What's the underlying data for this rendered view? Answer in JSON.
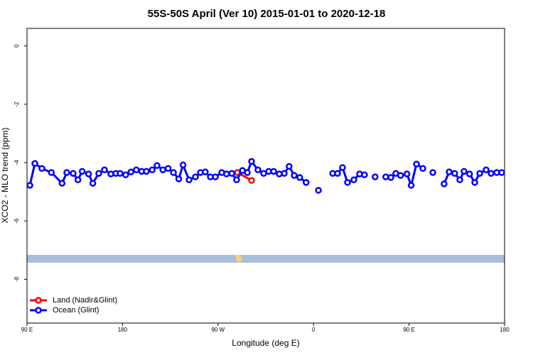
{
  "chart_data": {
    "type": "line",
    "title": "55S-50S April (Ver 10)   2015-01-01 to 2020-12-18",
    "x_label": "Longitude (deg E)",
    "y_label": "XCO2 - MLO trend (ppm)",
    "xlim": [
      90,
      540
    ],
    "ylim": [
      -9.5,
      0.6
    ],
    "xticks": [
      {
        "value": 90,
        "label": "90 E"
      },
      180,
      {
        "value": 270,
        "label": "90 W"
      },
      {
        "value": 360,
        "label": "0"
      },
      {
        "value": 450,
        "label": "90 E"
      },
      {
        "value": 540,
        "label": "180"
      }
    ],
    "yticks": [
      -8,
      -6,
      -4,
      -2,
      0
    ],
    "legend": "bottom-left",
    "series": [
      {
        "name": "Land (Nadir&Glint)",
        "color": "#ff0000",
        "x": [
          288.2,
          301.6
        ],
        "values": [
          -4.34,
          -4.61
        ]
      },
      {
        "name": "Ocean (Glint)",
        "color": "#0000ff",
        "x": [
          92.7,
          97.4,
          104,
          113,
          123,
          127.5,
          133.5,
          138,
          142,
          148,
          152,
          157.6,
          163,
          169,
          173.7,
          177.7,
          183,
          188,
          193,
          198,
          202.5,
          208,
          212.5,
          218,
          223,
          228,
          233,
          237,
          242.7,
          248.7,
          253.4,
          258,
          262.8,
          267.5,
          273.5,
          278,
          283,
          287.5,
          293,
          297.6,
          301.6,
          307.6,
          313,
          317.7,
          322.4,
          327.7,
          332.4,
          337,
          341.8,
          347,
          353,
          359,
          364.6,
          371,
          378,
          382.6,
          387.3,
          392,
          398,
          403.4,
          408,
          413,
          418,
          423,
          428,
          432.9,
          437.5,
          442,
          448,
          452,
          457,
          463,
          468,
          472.4,
          478,
          483,
          487.8,
          493,
          497.8,
          501.8,
          507,
          511.9,
          516.6,
          522.6,
          527.3,
          532.6,
          537.3
        ],
        "values": [
          -4.78,
          -4.03,
          -4.2,
          -4.34,
          -4.71,
          -4.34,
          -4.37,
          -4.59,
          -4.3,
          -4.39,
          -4.71,
          -4.37,
          -4.25,
          -4.39,
          -4.37,
          -4.37,
          -4.42,
          -4.32,
          -4.25,
          -4.3,
          -4.3,
          -4.25,
          -4.1,
          -4.25,
          -4.2,
          -4.34,
          -4.56,
          -4.08,
          -4.59,
          -4.49,
          -4.34,
          -4.32,
          -4.49,
          -4.49,
          -4.34,
          -4.39,
          -4.37,
          -4.59,
          -4.27,
          -4.34,
          -3.96,
          -4.25,
          -4.37,
          -4.3,
          -4.3,
          -4.39,
          -4.37,
          -4.13,
          -4.44,
          -4.51,
          -4.68,
          null,
          -4.95,
          null,
          -4.37,
          -4.37,
          -4.17,
          -4.68,
          -4.59,
          -4.39,
          -4.42,
          null,
          -4.49,
          null,
          -4.49,
          -4.51,
          -4.37,
          -4.44,
          -4.39,
          -4.78,
          -4.05,
          -4.2,
          null,
          -4.34,
          null,
          -4.73,
          -4.32,
          -4.37,
          -4.59,
          -4.3,
          -4.39,
          -4.68,
          -4.37,
          -4.25,
          -4.37,
          -4.34,
          -4.34
        ]
      }
    ]
  }
}
